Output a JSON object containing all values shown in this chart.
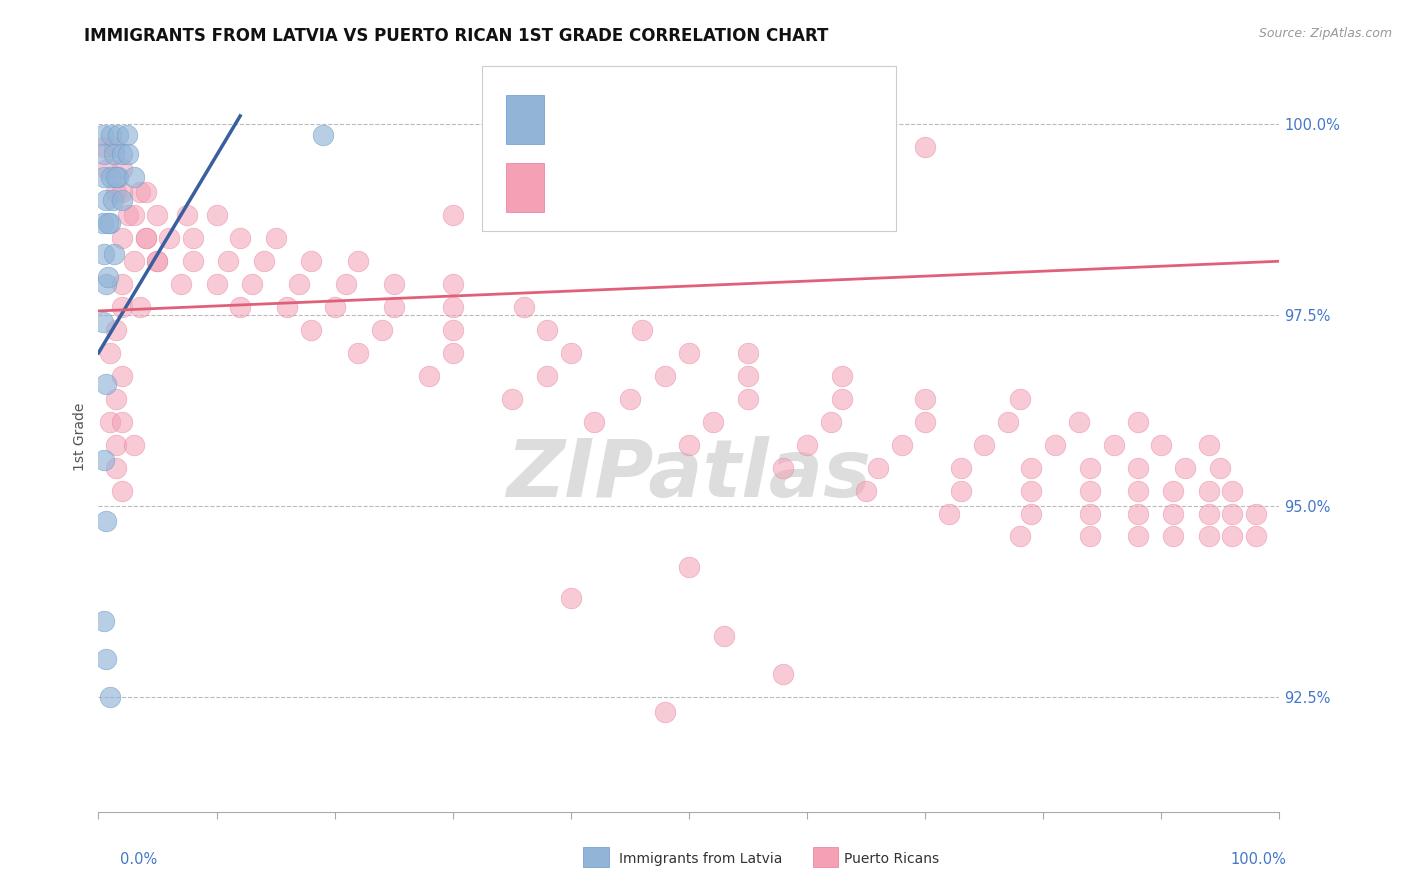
{
  "title": "IMMIGRANTS FROM LATVIA VS PUERTO RICAN 1ST GRADE CORRELATION CHART",
  "source_text": "Source: ZipAtlas.com",
  "ylabel": "1st Grade",
  "xlabel_bottom_left": "0.0%",
  "xlabel_bottom_right": "100.0%",
  "legend_blue_label": "Immigrants from Latvia",
  "legend_pink_label": "Puerto Ricans",
  "blue_color": "#92B4D7",
  "pink_color": "#F4A0B5",
  "blue_edge_color": "#6699CC",
  "pink_edge_color": "#E87A96",
  "blue_line_color": "#3A5FA0",
  "pink_line_color": "#E0607A",
  "watermark_text": "ZIPatlas",
  "xlim": [
    0.0,
    100.0
  ],
  "ylim": [
    91.0,
    100.8
  ],
  "ytick_positions": [
    100.0,
    97.5,
    95.0,
    92.5
  ],
  "ytick_labels": [
    "100.0%",
    "97.5%",
    "95.0%",
    "92.5%"
  ],
  "grid_color": "#BBBBBB",
  "background_color": "#FFFFFF",
  "watermark_color": "#DDDDDD",
  "blue_trendline": {
    "x_start": 0.0,
    "y_start": 97.0,
    "x_end": 12.0,
    "y_end": 100.1
  },
  "pink_trendline": {
    "x_start": 0.0,
    "y_start": 97.55,
    "x_end": 100.0,
    "y_end": 98.2
  },
  "blue_dots": [
    [
      0.4,
      99.85
    ],
    [
      1.1,
      99.85
    ],
    [
      1.7,
      99.85
    ],
    [
      2.4,
      99.85
    ],
    [
      0.5,
      99.6
    ],
    [
      1.3,
      99.6
    ],
    [
      2.0,
      99.6
    ],
    [
      0.5,
      99.3
    ],
    [
      1.1,
      99.3
    ],
    [
      1.7,
      99.3
    ],
    [
      0.6,
      99.0
    ],
    [
      1.2,
      99.0
    ],
    [
      0.4,
      98.7
    ],
    [
      1.0,
      98.7
    ],
    [
      0.5,
      98.3
    ],
    [
      0.6,
      97.9
    ],
    [
      0.4,
      97.4
    ],
    [
      0.6,
      96.6
    ],
    [
      0.5,
      95.6
    ],
    [
      0.6,
      94.8
    ],
    [
      19.0,
      99.85
    ],
    [
      0.5,
      93.5
    ],
    [
      0.6,
      93.0
    ],
    [
      1.0,
      92.5
    ],
    [
      1.5,
      99.3
    ],
    [
      2.5,
      99.6
    ],
    [
      3.0,
      99.3
    ],
    [
      0.8,
      98.7
    ],
    [
      0.8,
      98.0
    ],
    [
      1.3,
      98.3
    ],
    [
      2.0,
      99.0
    ]
  ],
  "pink_dots": [
    [
      0.5,
      99.7
    ],
    [
      1.3,
      99.7
    ],
    [
      0.7,
      99.4
    ],
    [
      2.0,
      99.4
    ],
    [
      1.5,
      99.1
    ],
    [
      3.5,
      99.1
    ],
    [
      2.5,
      98.8
    ],
    [
      5.0,
      98.8
    ],
    [
      7.5,
      98.8
    ],
    [
      10.0,
      98.8
    ],
    [
      4.0,
      98.5
    ],
    [
      6.0,
      98.5
    ],
    [
      8.0,
      98.5
    ],
    [
      12.0,
      98.5
    ],
    [
      15.0,
      98.5
    ],
    [
      5.0,
      98.2
    ],
    [
      8.0,
      98.2
    ],
    [
      11.0,
      98.2
    ],
    [
      14.0,
      98.2
    ],
    [
      18.0,
      98.2
    ],
    [
      22.0,
      98.2
    ],
    [
      7.0,
      97.9
    ],
    [
      10.0,
      97.9
    ],
    [
      13.0,
      97.9
    ],
    [
      17.0,
      97.9
    ],
    [
      21.0,
      97.9
    ],
    [
      25.0,
      97.9
    ],
    [
      30.0,
      97.9
    ],
    [
      12.0,
      97.6
    ],
    [
      16.0,
      97.6
    ],
    [
      20.0,
      97.6
    ],
    [
      25.0,
      97.6
    ],
    [
      30.0,
      97.6
    ],
    [
      36.0,
      97.6
    ],
    [
      18.0,
      97.3
    ],
    [
      24.0,
      97.3
    ],
    [
      30.0,
      97.3
    ],
    [
      38.0,
      97.3
    ],
    [
      46.0,
      97.3
    ],
    [
      22.0,
      97.0
    ],
    [
      30.0,
      97.0
    ],
    [
      40.0,
      97.0
    ],
    [
      50.0,
      97.0
    ],
    [
      55.0,
      97.0
    ],
    [
      28.0,
      96.7
    ],
    [
      38.0,
      96.7
    ],
    [
      48.0,
      96.7
    ],
    [
      55.0,
      96.7
    ],
    [
      63.0,
      96.7
    ],
    [
      35.0,
      96.4
    ],
    [
      45.0,
      96.4
    ],
    [
      55.0,
      96.4
    ],
    [
      63.0,
      96.4
    ],
    [
      70.0,
      96.4
    ],
    [
      78.0,
      96.4
    ],
    [
      42.0,
      96.1
    ],
    [
      52.0,
      96.1
    ],
    [
      62.0,
      96.1
    ],
    [
      70.0,
      96.1
    ],
    [
      77.0,
      96.1
    ],
    [
      83.0,
      96.1
    ],
    [
      88.0,
      96.1
    ],
    [
      50.0,
      95.8
    ],
    [
      60.0,
      95.8
    ],
    [
      68.0,
      95.8
    ],
    [
      75.0,
      95.8
    ],
    [
      81.0,
      95.8
    ],
    [
      86.0,
      95.8
    ],
    [
      90.0,
      95.8
    ],
    [
      94.0,
      95.8
    ],
    [
      58.0,
      95.5
    ],
    [
      66.0,
      95.5
    ],
    [
      73.0,
      95.5
    ],
    [
      79.0,
      95.5
    ],
    [
      84.0,
      95.5
    ],
    [
      88.0,
      95.5
    ],
    [
      92.0,
      95.5
    ],
    [
      95.0,
      95.5
    ],
    [
      65.0,
      95.2
    ],
    [
      73.0,
      95.2
    ],
    [
      79.0,
      95.2
    ],
    [
      84.0,
      95.2
    ],
    [
      88.0,
      95.2
    ],
    [
      91.0,
      95.2
    ],
    [
      94.0,
      95.2
    ],
    [
      96.0,
      95.2
    ],
    [
      72.0,
      94.9
    ],
    [
      79.0,
      94.9
    ],
    [
      84.0,
      94.9
    ],
    [
      88.0,
      94.9
    ],
    [
      91.0,
      94.9
    ],
    [
      94.0,
      94.9
    ],
    [
      96.0,
      94.9
    ],
    [
      98.0,
      94.9
    ],
    [
      78.0,
      94.6
    ],
    [
      84.0,
      94.6
    ],
    [
      88.0,
      94.6
    ],
    [
      91.0,
      94.6
    ],
    [
      94.0,
      94.6
    ],
    [
      96.0,
      94.6
    ],
    [
      98.0,
      94.6
    ],
    [
      55.0,
      99.7
    ],
    [
      70.0,
      99.7
    ],
    [
      50.0,
      99.4
    ],
    [
      40.0,
      99.1
    ],
    [
      30.0,
      98.8
    ],
    [
      2.0,
      99.1
    ],
    [
      4.0,
      99.1
    ],
    [
      3.0,
      98.8
    ],
    [
      2.0,
      98.5
    ],
    [
      4.0,
      98.5
    ],
    [
      3.0,
      98.2
    ],
    [
      5.0,
      98.2
    ],
    [
      2.0,
      97.9
    ],
    [
      2.0,
      97.6
    ],
    [
      3.5,
      97.6
    ],
    [
      1.5,
      97.3
    ],
    [
      1.0,
      97.0
    ],
    [
      2.0,
      96.7
    ],
    [
      1.5,
      96.4
    ],
    [
      1.0,
      96.1
    ],
    [
      2.0,
      96.1
    ],
    [
      1.5,
      95.8
    ],
    [
      3.0,
      95.8
    ],
    [
      1.5,
      95.5
    ],
    [
      2.0,
      95.2
    ],
    [
      50.0,
      94.2
    ],
    [
      40.0,
      93.8
    ],
    [
      53.0,
      93.3
    ],
    [
      58.0,
      92.8
    ],
    [
      48.0,
      92.3
    ]
  ]
}
